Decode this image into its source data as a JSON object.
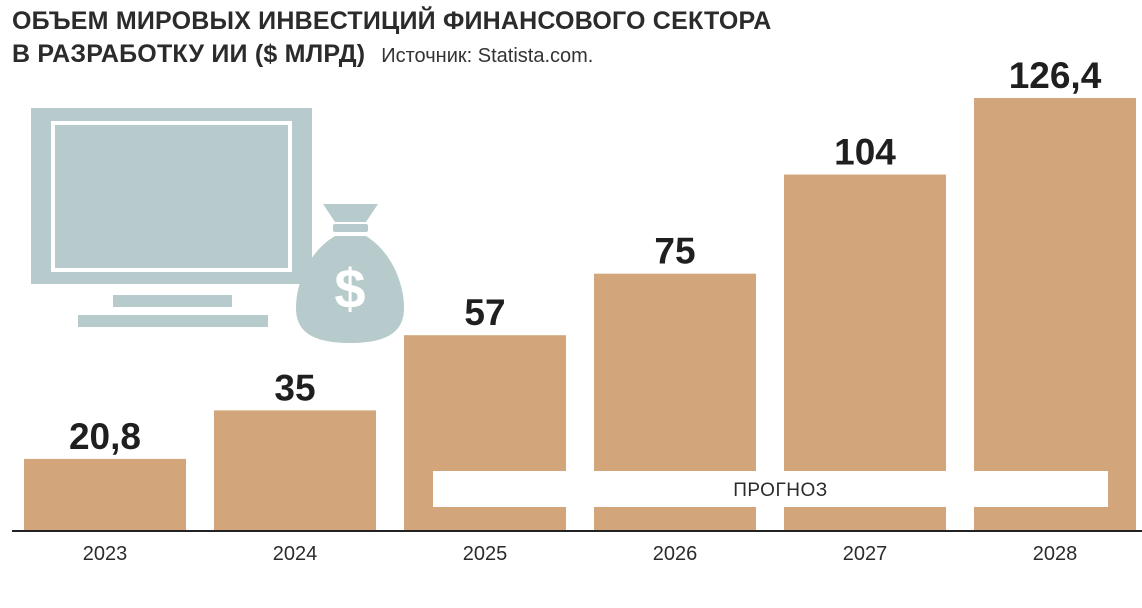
{
  "title_line1": "ОБЪЕМ МИРОВЫХ ИНВЕСТИЦИЙ ФИНАНСОВОГО СЕКТОРА",
  "title_line2": "В РАЗРАБОТКУ ИИ ($ МЛРД)",
  "source": "Источник: Statista.com.",
  "forecast_label": "ПРОГНОЗ",
  "colors": {
    "bar": "#d2a67a",
    "icon": "#b7cbcd",
    "text": "#1f1f1f"
  },
  "icons": [
    "computer-monitor-icon",
    "money-bag-dollar-icon"
  ],
  "chart_data": {
    "type": "bar",
    "title": "ОБЪЕМ МИРОВЫХ ИНВЕСТИЦИЙ ФИНАНСОВОГО СЕКТОРА В РАЗРАБОТКУ ИИ ($ МЛРД)",
    "categories": [
      "2023",
      "2024",
      "2025",
      "2026",
      "2027",
      "2028"
    ],
    "values": [
      20.8,
      35,
      57,
      75,
      104,
      126.4
    ],
    "value_labels": [
      "20,8",
      "35",
      "57",
      "75",
      "104",
      "126,4"
    ],
    "forecast_from": "2025",
    "ylim": [
      0,
      126.4
    ],
    "grid": false,
    "legend": "none"
  }
}
